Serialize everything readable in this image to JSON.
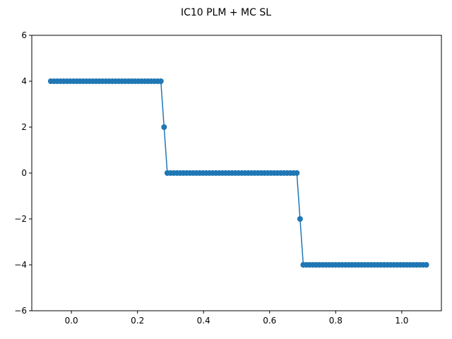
{
  "chart_data": {
    "type": "line",
    "title": "IC10 PLM + MC SL",
    "xlabel": "",
    "ylabel": "",
    "xlim": [
      -0.12,
      1.12
    ],
    "ylim": [
      -6,
      6
    ],
    "x_ticks": [
      0.0,
      0.2,
      0.4,
      0.6,
      0.8,
      1.0
    ],
    "x_tick_labels": [
      "0.0",
      "0.2",
      "0.4",
      "0.6",
      "0.8",
      "1.0"
    ],
    "y_ticks": [
      -6,
      -4,
      -2,
      0,
      2,
      4,
      6
    ],
    "y_tick_labels": [
      "−6",
      "−4",
      "−2",
      "0",
      "2",
      "4",
      "6"
    ],
    "grid": false,
    "marker": "circle",
    "color": "#1f77b4",
    "series": [
      {
        "x_start": -0.0625,
        "dx": 0.0098,
        "values": [
          4,
          4,
          4,
          4,
          4,
          4,
          4,
          4,
          4,
          4,
          4,
          4,
          4,
          4,
          4,
          4,
          4,
          4,
          4,
          4,
          4,
          4,
          4,
          4,
          4,
          4,
          4,
          4,
          4,
          4,
          4,
          4,
          4,
          4,
          4,
          2,
          0,
          0,
          0,
          0,
          0,
          0,
          0,
          0,
          0,
          0,
          0,
          0,
          0,
          0,
          0,
          0,
          0,
          0,
          0,
          0,
          0,
          0,
          0,
          0,
          0,
          0,
          0,
          0,
          0,
          0,
          0,
          0,
          0,
          0,
          0,
          0,
          0,
          0,
          0,
          0,
          0,
          -2,
          -4,
          -4,
          -4,
          -4,
          -4,
          -4,
          -4,
          -4,
          -4,
          -4,
          -4,
          -4,
          -4,
          -4,
          -4,
          -4,
          -4,
          -4,
          -4,
          -4,
          -4,
          -4,
          -4,
          -4,
          -4,
          -4,
          -4,
          -4,
          -4,
          -4,
          -4,
          -4,
          -4,
          -4,
          -4,
          -4,
          -4,
          -4,
          -4
        ]
      }
    ]
  }
}
